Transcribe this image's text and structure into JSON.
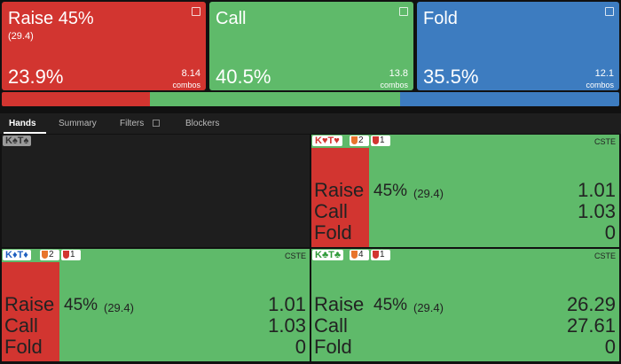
{
  "actions": [
    {
      "name": "Raise 45%",
      "sizing": "(29.4)",
      "freq": 23.9,
      "freq_label": "23.9%",
      "combos": "8.14",
      "combos_unit": "combos"
    },
    {
      "name": "Call",
      "freq": 40.5,
      "freq_label": "40.5%",
      "combos": "13.8",
      "combos_unit": "combos"
    },
    {
      "name": "Fold",
      "freq": 35.5,
      "freq_label": "35.5%",
      "combos": "12.1",
      "combos_unit": "combos"
    }
  ],
  "tabs": [
    "Hands",
    "Summary",
    "Filters",
    "Blockers"
  ],
  "cells": [
    {
      "hand": "K♠T♠"
    },
    {
      "hand": "K♥T♥",
      "badges": [
        "2",
        "1"
      ],
      "tag": "CSTE",
      "rows": [
        [
          "Raise",
          "45%",
          "(29.4)",
          "1.01"
        ],
        [
          "Call",
          "1.03"
        ],
        [
          "Fold",
          "0"
        ]
      ]
    },
    {
      "hand": "K♦T♦",
      "badges": [
        "2",
        "1"
      ],
      "tag": "CSTE",
      "rows": [
        [
          "Raise",
          "45%",
          "(29.4)",
          "1.01"
        ],
        [
          "Call",
          "1.03"
        ],
        [
          "Fold",
          "0"
        ]
      ]
    },
    {
      "hand": "K♣T♣",
      "badges": [
        "4",
        "1"
      ],
      "tag": "CSTE",
      "rows": [
        [
          "Raise",
          "45%",
          "(29.4)",
          "26.29"
        ],
        [
          "Call",
          "27.61"
        ],
        [
          "Fold",
          "0"
        ]
      ]
    }
  ]
}
